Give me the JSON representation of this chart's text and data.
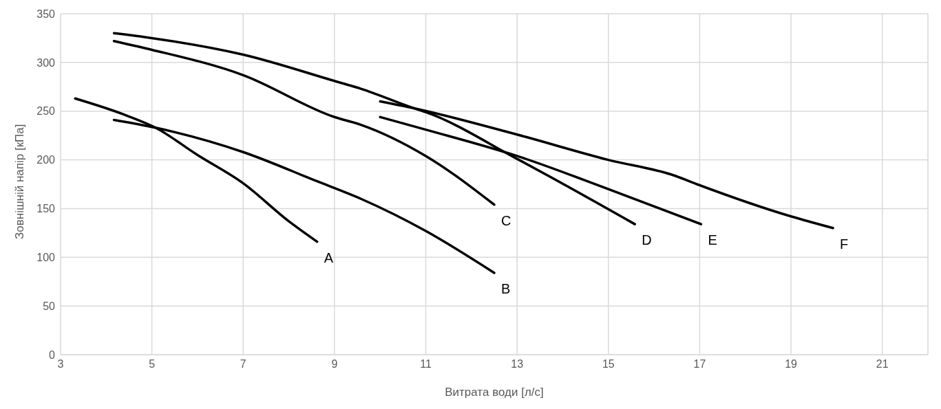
{
  "chart_data": {
    "type": "line",
    "xlabel": "Витрата води [л/с]",
    "ylabel": "Зовнішній напір [кПа]",
    "xlim": [
      3,
      22
    ],
    "xticks": [
      3,
      5,
      7,
      9,
      11,
      13,
      15,
      17,
      19,
      21
    ],
    "ylim": [
      0,
      350
    ],
    "yticks": [
      0,
      50,
      100,
      150,
      200,
      250,
      300,
      350
    ],
    "grid": true,
    "marker": "none",
    "line_style": "solid",
    "series": [
      {
        "name": "A",
        "color": "#000000",
        "x": [
          3.32,
          4.36,
          5.08,
          6,
          7,
          8,
          8.62
        ],
        "values": [
          263,
          247,
          233,
          205,
          176,
          137,
          116
        ]
      },
      {
        "name": "B",
        "color": "#000000",
        "x": [
          4.17,
          5.08,
          7,
          8.62,
          9.58,
          11,
          12.5
        ],
        "values": [
          241,
          233,
          208,
          178,
          160,
          127,
          84
        ]
      },
      {
        "name": "C",
        "color": "#000000",
        "x": [
          4.17,
          5,
          7,
          9,
          9.58,
          11,
          12.5
        ],
        "values": [
          322,
          313,
          287,
          244,
          236,
          204,
          154
        ]
      },
      {
        "name": "D",
        "color": "#000000",
        "x": [
          4.17,
          5,
          7,
          9,
          9.58,
          10.74,
          11,
          13,
          15.58
        ],
        "values": [
          330,
          325,
          308,
          281,
          273,
          253,
          249,
          201,
          134
        ]
      },
      {
        "name": "E",
        "color": "#000000",
        "x": [
          10,
          11,
          13,
          15,
          17.03
        ],
        "values": [
          244,
          231,
          204,
          170,
          134
        ]
      },
      {
        "name": "F",
        "color": "#000000",
        "x": [
          10,
          10.74,
          13,
          15,
          16.44,
          17,
          19,
          19.92
        ],
        "values": [
          260,
          253,
          226,
          200,
          184,
          174,
          142,
          130
        ]
      }
    ]
  }
}
